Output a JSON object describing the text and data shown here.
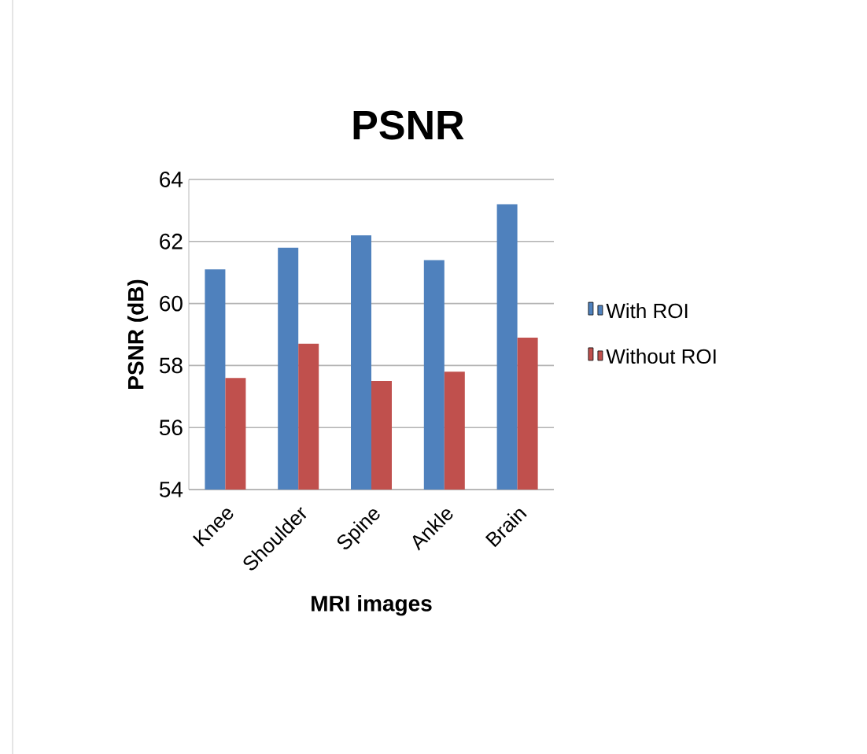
{
  "chart_data": {
    "type": "bar",
    "title": "PSNR",
    "xlabel": "MRI images",
    "ylabel": "PSNR (dB)",
    "categories": [
      "Knee",
      "Shoulder",
      "Spine",
      "Ankle",
      "Brain"
    ],
    "series": [
      {
        "name": "With ROI",
        "color": "#4f81bd",
        "values": [
          61.1,
          61.8,
          62.2,
          61.4,
          63.2
        ]
      },
      {
        "name": "Without ROI",
        "color": "#c0504d",
        "values": [
          57.6,
          58.7,
          57.5,
          57.8,
          58.9
        ]
      }
    ],
    "ylim": [
      54,
      64
    ],
    "yticks": [
      54,
      56,
      58,
      60,
      62,
      64
    ],
    "grid": "y",
    "legend": "right"
  }
}
